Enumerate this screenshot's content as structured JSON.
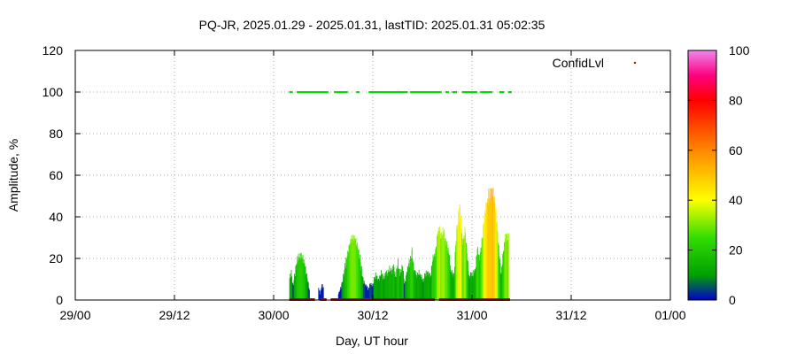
{
  "chart_data": {
    "type": "area",
    "title": "PQ-JR, 2025.01.29 - 2025.01.31, lastTID: 2025.01.31 05:02:35",
    "xlabel": "Day, UT hour",
    "ylabel": "Amplitude, %",
    "xlim": [
      0,
      72
    ],
    "ylim": [
      0,
      120
    ],
    "x_unit": "hours since 29/00 UT",
    "x_ticks": [
      {
        "x": 0,
        "label": "29/00"
      },
      {
        "x": 12,
        "label": "29/12"
      },
      {
        "x": 24,
        "label": "30/00"
      },
      {
        "x": 36,
        "label": "30/12"
      },
      {
        "x": 48,
        "label": "31/00"
      },
      {
        "x": 60,
        "label": "31/12"
      },
      {
        "x": 72,
        "label": "01/00"
      }
    ],
    "y_ticks": [
      0,
      20,
      40,
      60,
      80,
      100,
      120
    ],
    "grid": true,
    "legend": {
      "position": "top-right",
      "entries": [
        {
          "name": "ConfidLvl",
          "color": "#cc0000"
        }
      ]
    },
    "colorbar": {
      "min": 0,
      "max": 100,
      "ticks": [
        0,
        20,
        40,
        60,
        80,
        100
      ],
      "stops": [
        {
          "v": 0,
          "color": "#0000cc"
        },
        {
          "v": 10,
          "color": "#00a000"
        },
        {
          "v": 25,
          "color": "#33dd00"
        },
        {
          "v": 40,
          "color": "#ffff00"
        },
        {
          "v": 60,
          "color": "#ff8800"
        },
        {
          "v": 80,
          "color": "#ff0000"
        },
        {
          "v": 90,
          "color": "#ff0080"
        },
        {
          "v": 100,
          "color": "#ee88ee"
        }
      ]
    },
    "amplitude_series": {
      "name": "Amplitude",
      "points": [
        [
          25.9,
          11
        ],
        [
          26.1,
          14
        ],
        [
          26.3,
          7
        ],
        [
          26.5,
          12
        ],
        [
          26.7,
          17
        ],
        [
          26.9,
          20
        ],
        [
          27.1,
          20
        ],
        [
          27.3,
          20
        ],
        [
          27.5,
          19
        ],
        [
          27.7,
          17
        ],
        [
          27.9,
          13
        ],
        [
          28.1,
          9
        ],
        [
          28.3,
          5
        ],
        [
          29.4,
          6
        ],
        [
          29.6,
          3
        ],
        [
          29.8,
          8
        ],
        [
          30.0,
          6
        ],
        [
          31.8,
          3
        ],
        [
          32.0,
          5
        ],
        [
          32.2,
          8
        ],
        [
          32.4,
          12
        ],
        [
          32.6,
          17
        ],
        [
          32.8,
          20
        ],
        [
          33.0,
          24
        ],
        [
          33.2,
          27
        ],
        [
          33.4,
          29
        ],
        [
          33.6,
          29
        ],
        [
          33.8,
          29
        ],
        [
          34.0,
          27
        ],
        [
          34.2,
          24
        ],
        [
          34.4,
          20
        ],
        [
          34.6,
          15
        ],
        [
          34.8,
          10
        ],
        [
          35.0,
          8
        ],
        [
          35.4,
          5
        ],
        [
          35.7,
          8
        ],
        [
          36.0,
          7
        ],
        [
          36.3,
          13
        ],
        [
          36.6,
          9
        ],
        [
          36.9,
          13
        ],
        [
          37.2,
          11
        ],
        [
          37.5,
          12
        ],
        [
          37.8,
          14
        ],
        [
          38.1,
          14
        ],
        [
          38.4,
          16
        ],
        [
          38.7,
          12
        ],
        [
          39.0,
          17
        ],
        [
          39.3,
          13
        ],
        [
          39.6,
          16
        ],
        [
          39.8,
          8
        ],
        [
          40.3,
          17
        ],
        [
          40.5,
          19
        ],
        [
          40.7,
          24
        ],
        [
          41.0,
          13
        ],
        [
          41.8,
          12
        ],
        [
          42.1,
          9
        ],
        [
          42.4,
          14
        ],
        [
          42.7,
          12
        ],
        [
          43.0,
          13
        ],
        [
          43.3,
          21
        ],
        [
          43.6,
          24
        ],
        [
          43.8,
          32
        ],
        [
          44.0,
          34
        ],
        [
          44.3,
          31
        ],
        [
          44.6,
          33
        ],
        [
          44.9,
          26
        ],
        [
          45.2,
          23
        ],
        [
          45.4,
          13
        ],
        [
          45.8,
          12
        ],
        [
          46.1,
          35
        ],
        [
          46.3,
          40
        ],
        [
          46.5,
          44
        ],
        [
          46.8,
          28
        ],
        [
          47.1,
          33
        ],
        [
          47.4,
          21
        ],
        [
          47.6,
          11
        ],
        [
          48.3,
          14
        ],
        [
          48.6,
          24
        ],
        [
          48.9,
          21
        ],
        [
          49.2,
          29
        ],
        [
          49.4,
          40
        ],
        [
          49.6,
          45
        ],
        [
          49.8,
          48
        ],
        [
          50.0,
          51
        ],
        [
          50.2,
          49
        ],
        [
          50.4,
          51
        ],
        [
          50.6,
          48
        ],
        [
          50.8,
          42
        ],
        [
          51.0,
          35
        ],
        [
          51.2,
          24
        ],
        [
          51.5,
          13
        ],
        [
          51.8,
          25
        ],
        [
          52.0,
          32
        ],
        [
          52.2,
          31
        ],
        [
          52.4,
          30
        ]
      ]
    },
    "confid_series": {
      "name": "ConfidLvl",
      "value": 100,
      "color": "#00dd00",
      "x_ranges": [
        [
          26.0,
          26.3
        ],
        [
          26.9,
          30.5
        ],
        [
          31.4,
          33.0
        ],
        [
          34.1,
          34.3
        ],
        [
          35.6,
          40.2
        ],
        [
          40.6,
          44.3
        ],
        [
          44.9,
          45.2
        ],
        [
          45.7,
          46.2
        ],
        [
          46.9,
          48.6
        ],
        [
          49.1,
          50.4
        ],
        [
          51.4,
          51.8
        ],
        [
          52.5,
          52.7
        ]
      ]
    },
    "baseline_red_ranges": [
      [
        25.9,
        29.0
      ],
      [
        29.6,
        30.4
      ],
      [
        30.9,
        43.5
      ],
      [
        44.0,
        52.6
      ]
    ]
  }
}
